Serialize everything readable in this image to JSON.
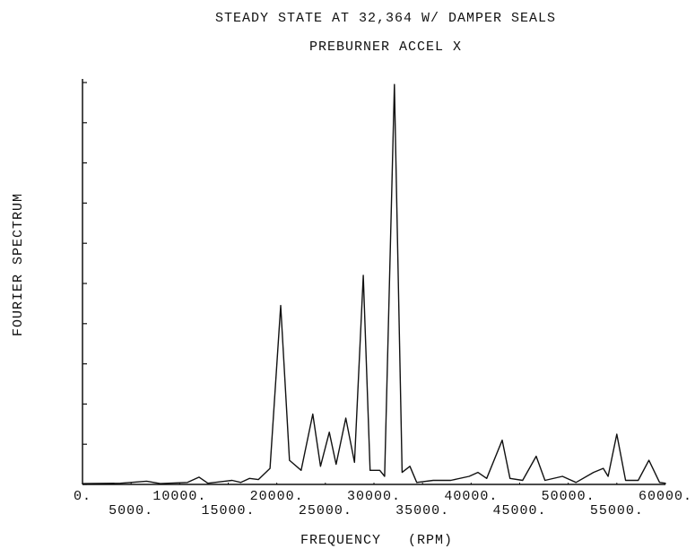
{
  "chart_data": {
    "type": "line",
    "title": "STEADY STATE AT 32,364 W/ DAMPER SEALS",
    "subtitle": "PREBURNER ACCEL X",
    "x_label": "FREQUENCY   (RPM)",
    "y_label": "FOURIER SPECTRUM",
    "color": "#111111",
    "x": [
      0,
      3900,
      6600,
      8000,
      10800,
      12000,
      12900,
      15400,
      16300,
      17200,
      18100,
      19300,
      20400,
      21300,
      22500,
      23700,
      24500,
      25400,
      26100,
      27100,
      28000,
      28900,
      29600,
      30600,
      31100,
      32100,
      32900,
      33700,
      34400,
      36100,
      37900,
      39800,
      40700,
      41600,
      43200,
      44000,
      45300,
      46700,
      47600,
      49400,
      50800,
      52600,
      53600,
      54100,
      55000,
      55900,
      57200,
      58300,
      59400,
      60000
    ],
    "values": [
      0.02,
      0.03,
      0.08,
      0.02,
      0.05,
      0.18,
      0.03,
      0.1,
      0.05,
      0.15,
      0.12,
      0.4,
      4.45,
      0.6,
      0.35,
      1.75,
      0.45,
      1.3,
      0.5,
      1.65,
      0.55,
      5.2,
      0.35,
      0.35,
      0.2,
      9.95,
      0.3,
      0.45,
      0.05,
      0.1,
      0.1,
      0.2,
      0.3,
      0.15,
      1.1,
      0.15,
      0.1,
      0.7,
      0.1,
      0.2,
      0.05,
      0.3,
      0.4,
      0.2,
      1.25,
      0.1,
      0.1,
      0.6,
      0.05,
      0.03
    ],
    "xlim": [
      0,
      60000
    ],
    "xticks": [
      {
        "value": 0,
        "label": "0."
      },
      {
        "value": 5000,
        "label": "5000."
      },
      {
        "value": 10000,
        "label": "10000."
      },
      {
        "value": 15000,
        "label": "15000."
      },
      {
        "value": 20000,
        "label": "20000."
      },
      {
        "value": 25000,
        "label": "25000."
      },
      {
        "value": 30000,
        "label": "30000."
      },
      {
        "value": 35000,
        "label": "35000."
      },
      {
        "value": 40000,
        "label": "40000."
      },
      {
        "value": 45000,
        "label": "45000."
      },
      {
        "value": 50000,
        "label": "50000."
      },
      {
        "value": 55000,
        "label": "55000."
      },
      {
        "value": 60000,
        "label": "60000."
      }
    ],
    "ylim": [
      0,
      10
    ],
    "yticks": [
      0,
      1,
      2,
      3,
      4,
      5,
      6,
      7,
      8,
      9,
      10
    ]
  }
}
